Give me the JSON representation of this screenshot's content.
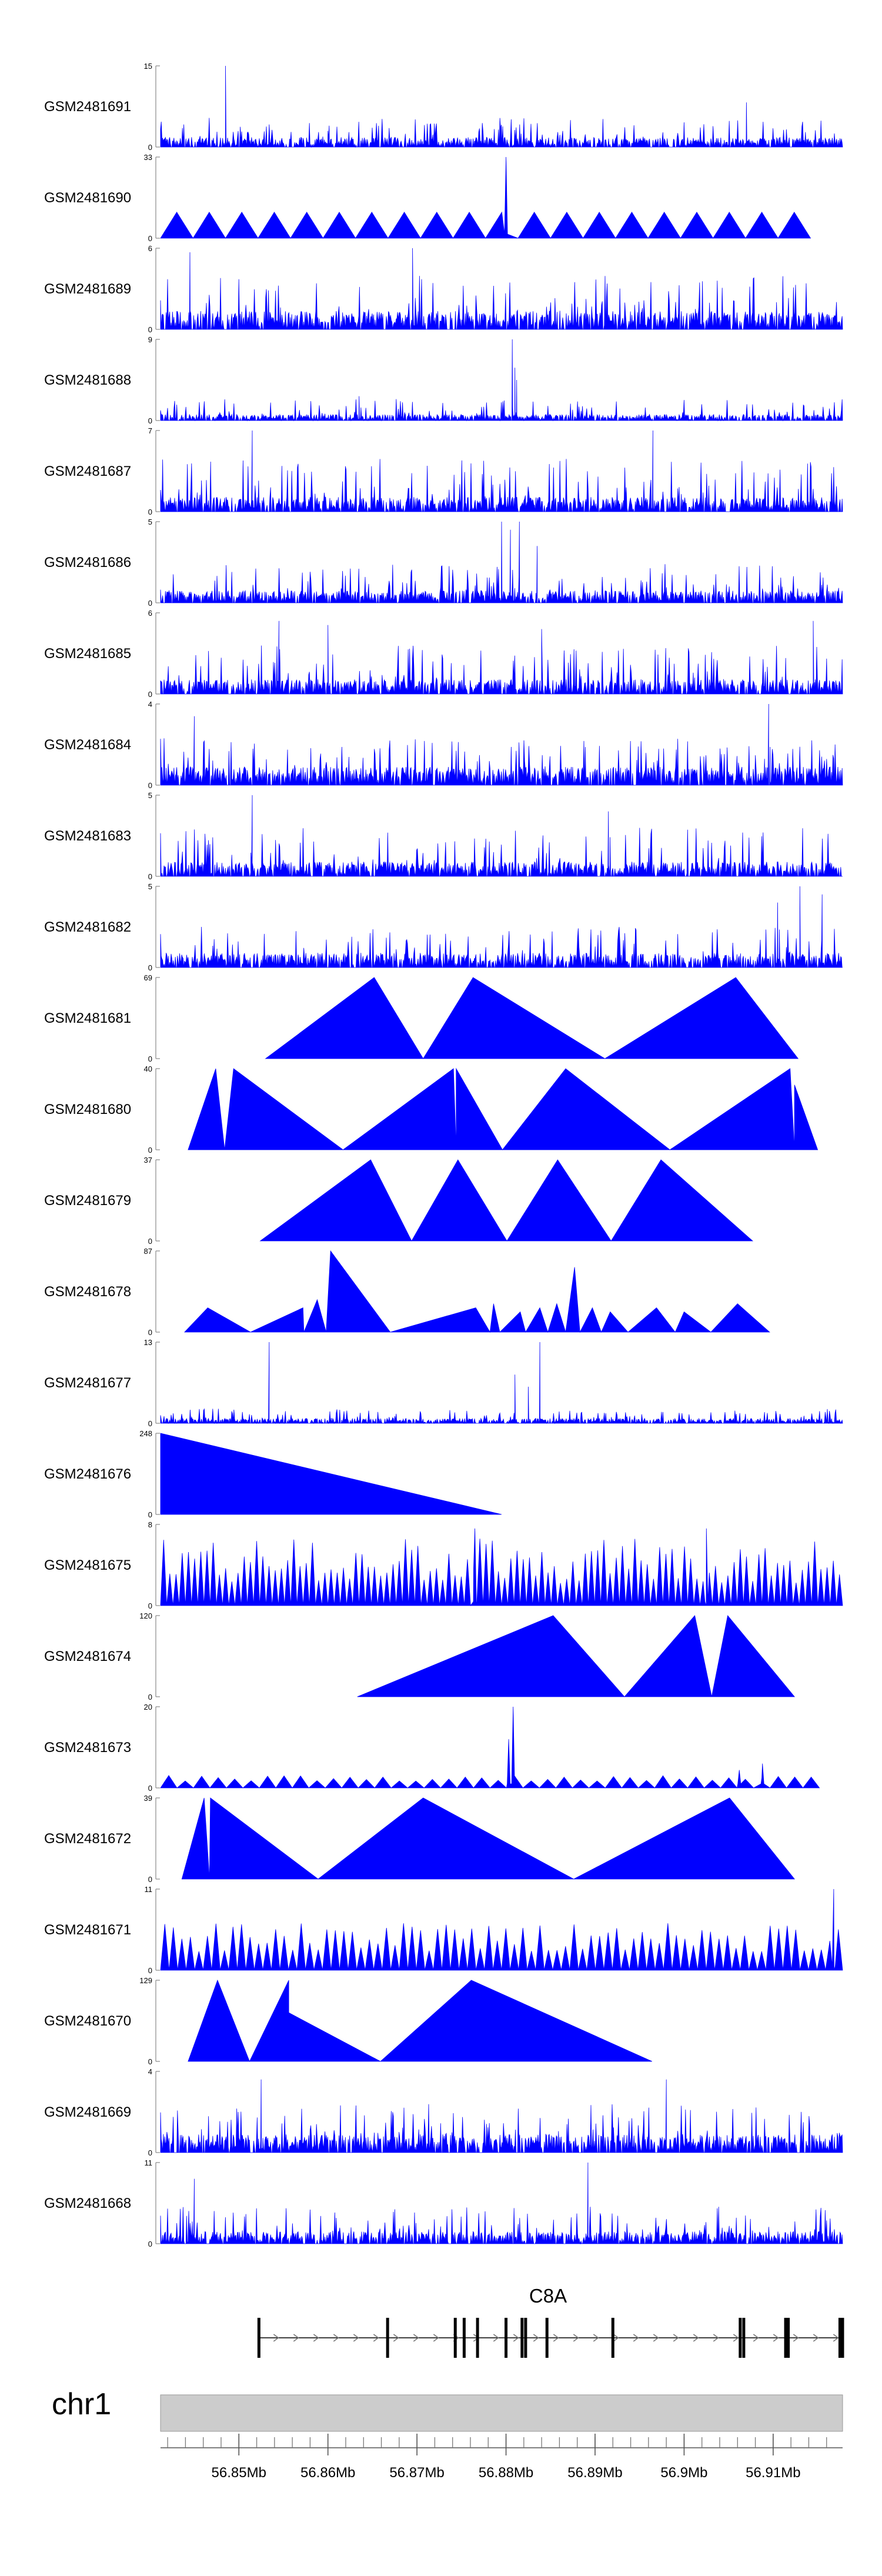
{
  "chart_data": {
    "type": "area",
    "xunit": "Mb",
    "xlim": [
      56.8412,
      56.9178
    ],
    "x_ticks": [
      "56.85Mb",
      "56.86Mb",
      "56.87Mb",
      "56.88Mb",
      "56.89Mb",
      "56.9Mb",
      "56.91Mb"
    ],
    "x_tick_values": [
      56.85,
      56.86,
      56.87,
      56.88,
      56.89,
      56.9,
      56.91
    ],
    "color": "#0000ff",
    "tracks": [
      {
        "name": "GSM2481691",
        "ymax": 15,
        "kind": "noisy",
        "base": 0.08,
        "amp": 0.3,
        "spikes": [
          [
            56.8485,
            1.0
          ],
          [
            56.907,
            0.55
          ],
          [
            56.86,
            0.2
          ]
        ]
      },
      {
        "name": "GSM2481690",
        "ymax": 33,
        "kind": "sawtooth",
        "span": [
          56.8412,
          56.9142
        ],
        "n": 20,
        "h": 0.32,
        "spikes": [
          [
            56.88,
            1.0
          ]
        ]
      },
      {
        "name": "GSM2481689",
        "ymax": 6,
        "kind": "noisy",
        "base": 0.15,
        "amp": 0.55,
        "spikes": [
          [
            56.8445,
            0.95
          ],
          [
            56.8695,
            1.0
          ]
        ]
      },
      {
        "name": "GSM2481688",
        "ymax": 9,
        "kind": "noisy",
        "base": 0.05,
        "amp": 0.22,
        "spikes": [
          [
            56.8807,
            1.0
          ],
          [
            56.881,
            0.65
          ],
          [
            56.8812,
            0.5
          ],
          [
            56.8635,
            0.3
          ]
        ]
      },
      {
        "name": "GSM2481687",
        "ymax": 7,
        "kind": "noisy",
        "base": 0.12,
        "amp": 0.55,
        "spikes": [
          [
            56.8515,
            1.0
          ],
          [
            56.8965,
            1.0
          ]
        ]
      },
      {
        "name": "GSM2481686",
        "ymax": 5,
        "kind": "noisy",
        "base": 0.1,
        "amp": 0.4,
        "spikes": [
          [
            56.8795,
            1.0
          ],
          [
            56.8815,
            1.0
          ],
          [
            56.8805,
            0.9
          ],
          [
            56.8835,
            0.7
          ]
        ]
      },
      {
        "name": "GSM2481685",
        "ymax": 6,
        "kind": "noisy",
        "base": 0.12,
        "amp": 0.5,
        "spikes": [
          [
            56.8545,
            0.9
          ],
          [
            56.86,
            0.85
          ],
          [
            56.884,
            0.8
          ],
          [
            56.9145,
            0.9
          ]
        ]
      },
      {
        "name": "GSM2481684",
        "ymax": 4,
        "kind": "noisy",
        "base": 0.15,
        "amp": 0.5,
        "spikes": [
          [
            56.9095,
            1.0
          ],
          [
            56.845,
            0.85
          ]
        ]
      },
      {
        "name": "GSM2481683",
        "ymax": 5,
        "kind": "noisy",
        "base": 0.12,
        "amp": 0.5,
        "spikes": [
          [
            56.8515,
            1.0
          ],
          [
            56.8915,
            0.8
          ]
        ]
      },
      {
        "name": "GSM2481682",
        "ymax": 5,
        "kind": "noisy",
        "base": 0.12,
        "amp": 0.42,
        "spikes": [
          [
            56.913,
            1.0
          ],
          [
            56.9155,
            0.9
          ],
          [
            56.9105,
            0.8
          ]
        ]
      },
      {
        "name": "GSM2481681",
        "ymax": 69,
        "kind": "peaks",
        "points": [
          [
            56.853,
            0.0
          ],
          [
            56.8652,
            1.0
          ],
          [
            56.8707,
            0.0
          ],
          [
            56.8763,
            1.0
          ],
          [
            56.8911,
            0.0
          ],
          [
            56.9058,
            1.0
          ],
          [
            56.9128,
            0.0
          ]
        ]
      },
      {
        "name": "GSM2481680",
        "ymax": 40,
        "kind": "peaks",
        "points": [
          [
            56.8443,
            0.0
          ],
          [
            56.8474,
            1.0
          ],
          [
            56.8484,
            0.0
          ],
          [
            56.8494,
            1.0
          ],
          [
            56.8617,
            0.0
          ],
          [
            56.8741,
            1.0
          ],
          [
            56.8744,
            0.0
          ],
          [
            56.8744,
            1.0
          ],
          [
            56.8796,
            0.0
          ],
          [
            56.8867,
            1.0
          ],
          [
            56.8984,
            0.0
          ],
          [
            56.9119,
            1.0
          ],
          [
            56.9124,
            0.0
          ],
          [
            56.9124,
            0.8
          ],
          [
            56.915,
            0.0
          ]
        ]
      },
      {
        "name": "GSM2481679",
        "ymax": 37,
        "kind": "peaks",
        "points": [
          [
            56.8524,
            0.0
          ],
          [
            56.8648,
            1.0
          ],
          [
            56.8694,
            0.0
          ],
          [
            56.8746,
            1.0
          ],
          [
            56.8801,
            0.0
          ],
          [
            56.8858,
            1.0
          ],
          [
            56.8918,
            0.0
          ],
          [
            56.8974,
            1.0
          ],
          [
            56.9077,
            0.0
          ]
        ]
      },
      {
        "name": "GSM2481678",
        "ymax": 87,
        "kind": "peaks",
        "points": [
          [
            56.8439,
            0.0
          ],
          [
            56.8465,
            0.3
          ],
          [
            56.8513,
            0.0
          ],
          [
            56.8572,
            0.3
          ],
          [
            56.8573,
            0.0
          ],
          [
            56.8588,
            0.4
          ],
          [
            56.8598,
            0.0
          ],
          [
            56.8603,
            1.0
          ],
          [
            56.867,
            0.0
          ],
          [
            56.8766,
            0.3
          ],
          [
            56.8782,
            0.0
          ],
          [
            56.8786,
            0.35
          ],
          [
            56.8793,
            0.0
          ],
          [
            56.8816,
            0.25
          ],
          [
            56.8822,
            0.0
          ],
          [
            56.8838,
            0.3
          ],
          [
            56.8847,
            0.0
          ],
          [
            56.8857,
            0.35
          ],
          [
            56.8867,
            0.0
          ],
          [
            56.8877,
            0.8
          ],
          [
            56.8883,
            0.0
          ],
          [
            56.8897,
            0.3
          ],
          [
            56.8907,
            0.0
          ],
          [
            56.8917,
            0.25
          ],
          [
            56.8937,
            0.0
          ],
          [
            56.8969,
            0.3
          ],
          [
            56.899,
            0.0
          ],
          [
            56.9,
            0.25
          ],
          [
            56.903,
            0.0
          ],
          [
            56.906,
            0.35
          ],
          [
            56.9096,
            0.0
          ]
        ]
      },
      {
        "name": "GSM2481677",
        "ymax": 13,
        "kind": "noisy",
        "base": 0.04,
        "amp": 0.15,
        "spikes": [
          [
            56.8534,
            1.0
          ],
          [
            56.8838,
            1.0
          ],
          [
            56.881,
            0.6
          ],
          [
            56.8825,
            0.45
          ]
        ]
      },
      {
        "name": "GSM2481676",
        "ymax": 248,
        "kind": "peaks",
        "points": [
          [
            56.8412,
            0.0
          ],
          [
            56.8412,
            1.0
          ],
          [
            56.8795,
            0.0
          ]
        ]
      },
      {
        "name": "GSM2481675",
        "ymax": 8,
        "kind": "sawtooth",
        "span": [
          56.8412,
          56.9178
        ],
        "n": 110,
        "h": 0.55,
        "jitter": 0.5,
        "spikes": [
          [
            56.8765,
            0.95
          ],
          [
            56.9025,
            0.95
          ]
        ]
      },
      {
        "name": "GSM2481674",
        "ymax": 120,
        "kind": "peaks",
        "points": [
          [
            56.8633,
            0.0
          ],
          [
            56.8853,
            1.0
          ],
          [
            56.8933,
            0.0
          ],
          [
            56.9012,
            1.0
          ],
          [
            56.9031,
            0.0
          ],
          [
            56.9049,
            1.0
          ],
          [
            56.9124,
            0.0
          ]
        ]
      },
      {
        "name": "GSM2481673",
        "ymax": 20,
        "kind": "sawtooth",
        "span": [
          56.8412,
          56.9152
        ],
        "n": 40,
        "h": 0.12,
        "jitter": 0.3,
        "spikes": [
          [
            56.8808,
            1.0
          ],
          [
            56.8803,
            0.6
          ],
          [
            56.9088,
            0.3
          ],
          [
            56.9062,
            0.22
          ]
        ]
      },
      {
        "name": "GSM2481672",
        "ymax": 39,
        "kind": "peaks",
        "points": [
          [
            56.8436,
            0.0
          ],
          [
            56.8461,
            1.0
          ],
          [
            56.8467,
            0.0
          ],
          [
            56.8468,
            1.0
          ],
          [
            56.8589,
            0.0
          ],
          [
            56.8707,
            1.0
          ],
          [
            56.8876,
            0.0
          ],
          [
            56.9051,
            1.0
          ],
          [
            56.9124,
            0.0
          ]
        ]
      },
      {
        "name": "GSM2481671",
        "ymax": 11,
        "kind": "sawtooth",
        "span": [
          56.8412,
          56.9178
        ],
        "n": 80,
        "h": 0.4,
        "jitter": 0.45,
        "spikes": [
          [
            56.9168,
            1.0
          ]
        ]
      },
      {
        "name": "GSM2481670",
        "ymax": 129,
        "kind": "peaks",
        "points": [
          [
            56.8443,
            0.0
          ],
          [
            56.8476,
            1.0
          ],
          [
            56.8512,
            0.0
          ],
          [
            56.8556,
            1.0
          ],
          [
            56.8556,
            0.0
          ],
          [
            56.8556,
            0.6
          ],
          [
            56.8659,
            0.0
          ],
          [
            56.8761,
            1.0
          ],
          [
            56.8964,
            0.0
          ]
        ]
      },
      {
        "name": "GSM2481669",
        "ymax": 4,
        "kind": "noisy",
        "base": 0.15,
        "amp": 0.5,
        "spikes": [
          [
            56.8525,
            0.9
          ],
          [
            56.898,
            0.9
          ]
        ]
      },
      {
        "name": "GSM2481668",
        "ymax": 11,
        "kind": "noisy",
        "base": 0.1,
        "amp": 0.38,
        "spikes": [
          [
            56.8892,
            1.0
          ],
          [
            56.845,
            0.8
          ]
        ]
      }
    ],
    "gene": {
      "name": "C8A",
      "start": 56.85225,
      "end": 56.9178,
      "exons": [
        56.85225,
        56.8667,
        56.8743,
        56.8753,
        56.8768,
        56.88,
        56.8818,
        56.8822,
        56.8846,
        56.892,
        56.9063,
        56.9067,
        56.9114,
        56.9117,
        56.9175,
        56.9178
      ]
    },
    "chromosome": {
      "name": "chr1"
    }
  }
}
